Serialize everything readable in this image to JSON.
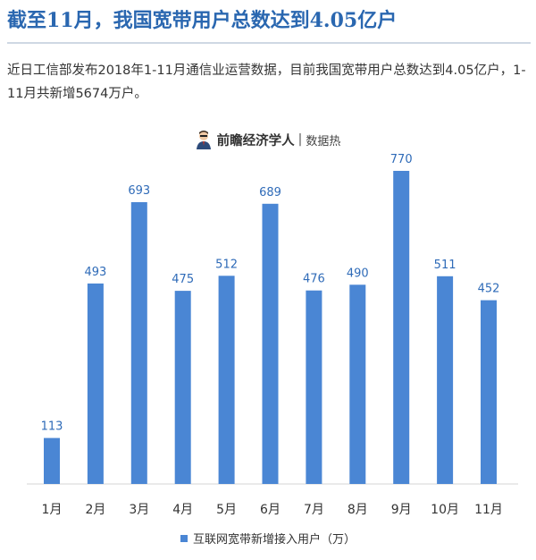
{
  "headline": "截至11月，我国宽带用户总数达到4.05亿户",
  "intro": "近日工信部发布2018年1-11月通信业运营数据，目前我国宽带用户总数达到4.05亿户，1-11月共新增5674万户。",
  "brand": {
    "name": "前瞻经济学人",
    "separator": "|",
    "column": "数据热",
    "avatar_icon": "person-avatar-icon"
  },
  "colors": {
    "bar": "#4a86d4",
    "label": "#2f6bb8",
    "headline": "#2a67b0"
  },
  "chart_data": {
    "type": "bar",
    "categories": [
      "1月",
      "2月",
      "3月",
      "4月",
      "5月",
      "6月",
      "7月",
      "8月",
      "9月",
      "10月",
      "11月"
    ],
    "series": [
      {
        "name": "互联网宽带新增接入用户（万）",
        "values": [
          113,
          493,
          693,
          475,
          512,
          689,
          476,
          490,
          770,
          511,
          452
        ]
      }
    ],
    "title": "",
    "xlabel": "",
    "ylabel": "",
    "ylim": [
      0,
      800
    ],
    "grid": false,
    "legend": "bottom-center",
    "data_labels": true
  }
}
